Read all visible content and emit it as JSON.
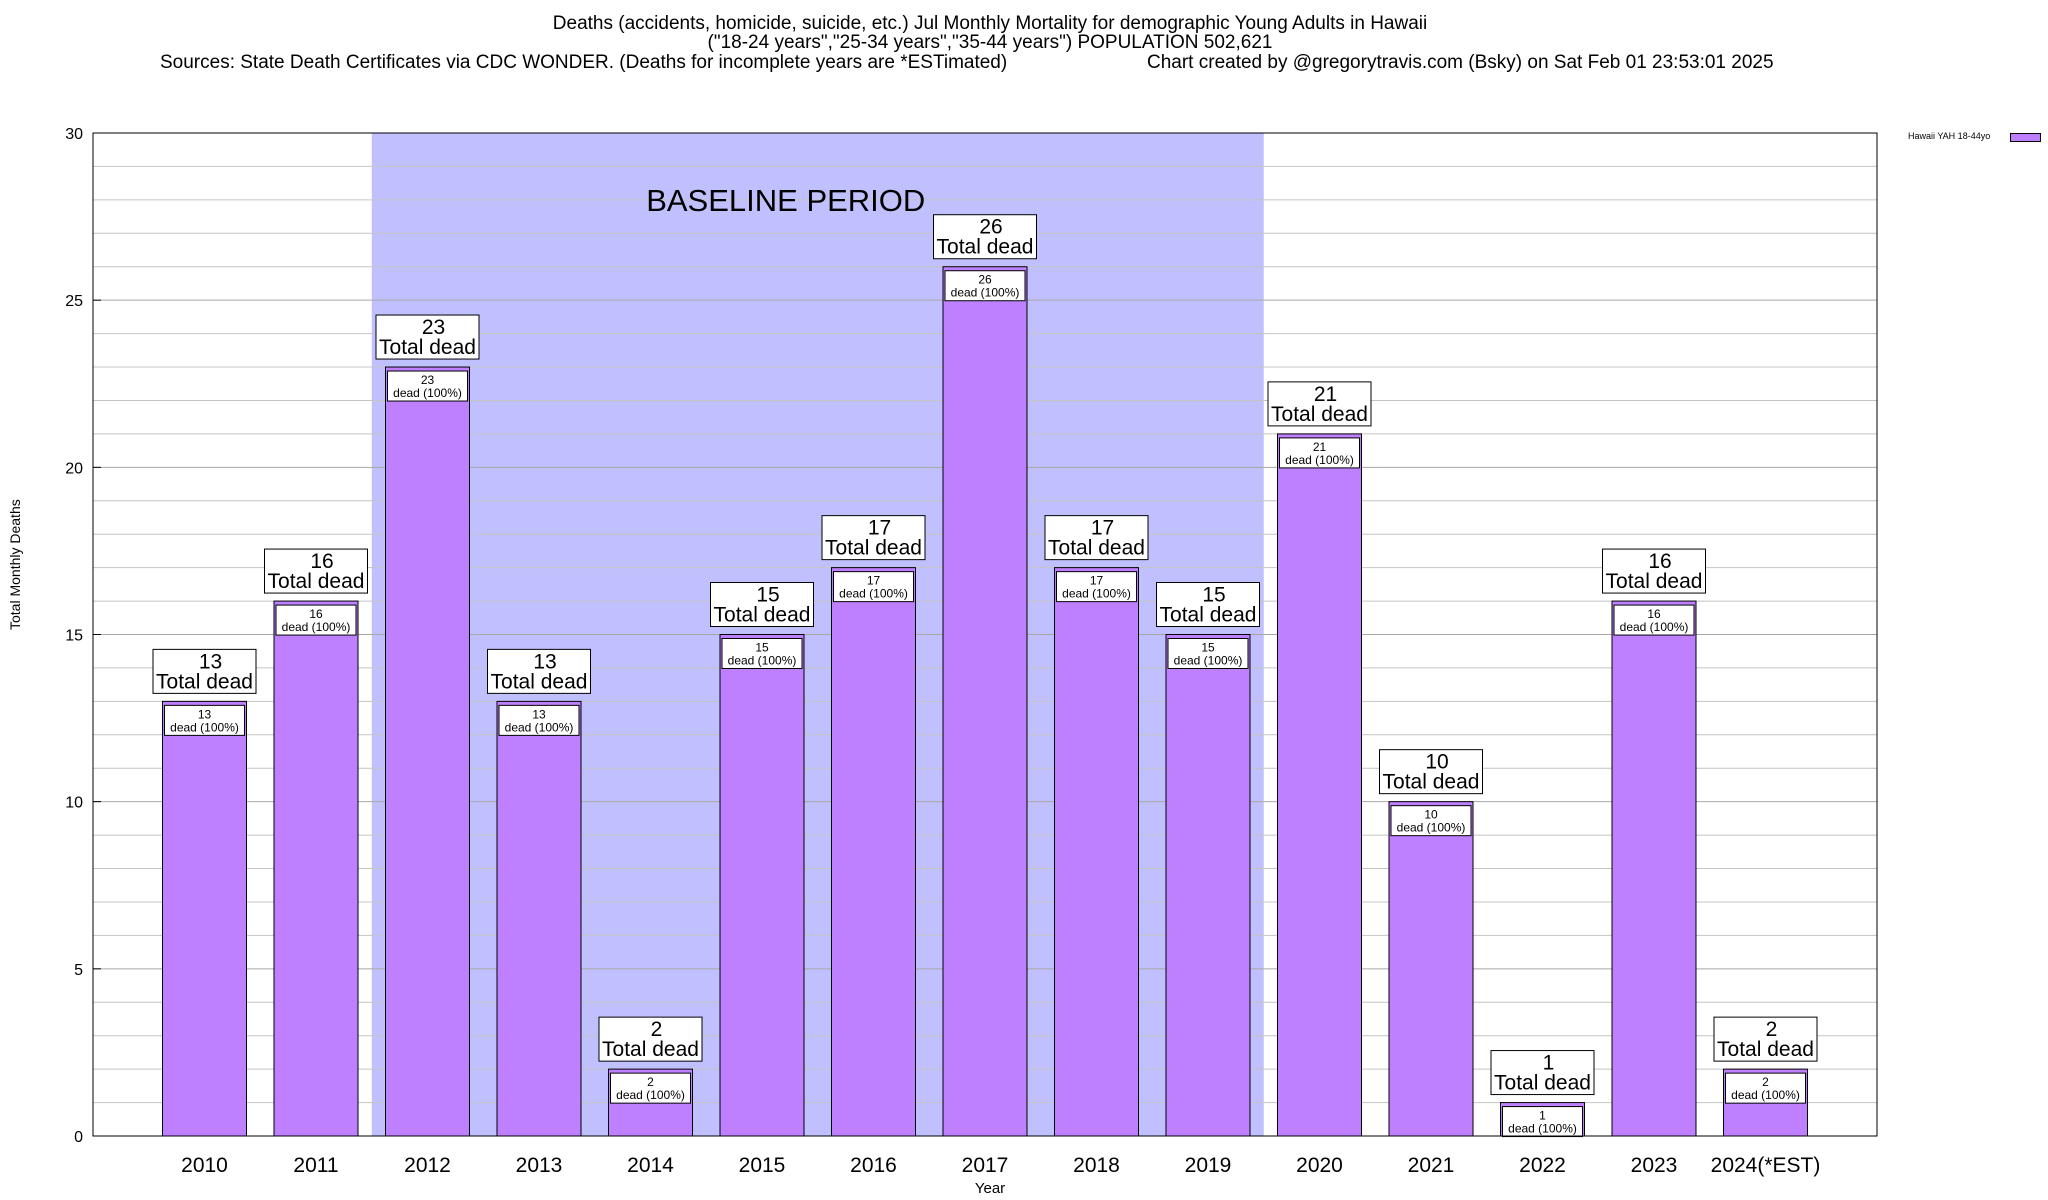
{
  "title_lines": [
    "Deaths (accidents, homicide, suicide, etc.) Jul Monthly Mortality for demographic Young Adults in Hawaii",
    "(\"18-24 years\",\"25-34 years\",\"35-44 years\") POPULATION 502,621"
  ],
  "sources_text": "Sources: State Death Certificates via CDC WONDER. (Deaths for incomplete years are *ESTimated)",
  "credit_text": "Chart created by @gregorytravis.com (Bsky) on Sat Feb 01 23:53:01 2025",
  "legend_label": "Hawaii YAH 18-44yo",
  "colors": {
    "bar": "#bf80ff",
    "baseline_band": "#c0c0ff"
  },
  "chart_data": {
    "type": "bar",
    "categories": [
      "2010",
      "2011",
      "2012",
      "2013",
      "2014",
      "2015",
      "2016",
      "2017",
      "2018",
      "2019",
      "2020",
      "2021",
      "2022",
      "2023",
      "2024(*EST)"
    ],
    "series": [
      {
        "name": "Hawaii YAH 18-44yo",
        "values": [
          13,
          16,
          23,
          13,
          2,
          15,
          17,
          26,
          17,
          15,
          21,
          10,
          1,
          16,
          2
        ]
      }
    ],
    "ylim": [
      0,
      30
    ],
    "yticks": [
      0,
      5,
      10,
      15,
      20,
      25,
      30
    ],
    "minor_grid_step": 1,
    "ylabel": "Total Monthly Deaths",
    "xlabel": "Year",
    "legend_position": "top-right",
    "grid": true,
    "baseline_period": {
      "label": "BASELINE PERIOD",
      "from": "2012",
      "to": "2019"
    },
    "label_total_suffix": "Total dead",
    "label_inner_suffix": "dead (100%)"
  }
}
